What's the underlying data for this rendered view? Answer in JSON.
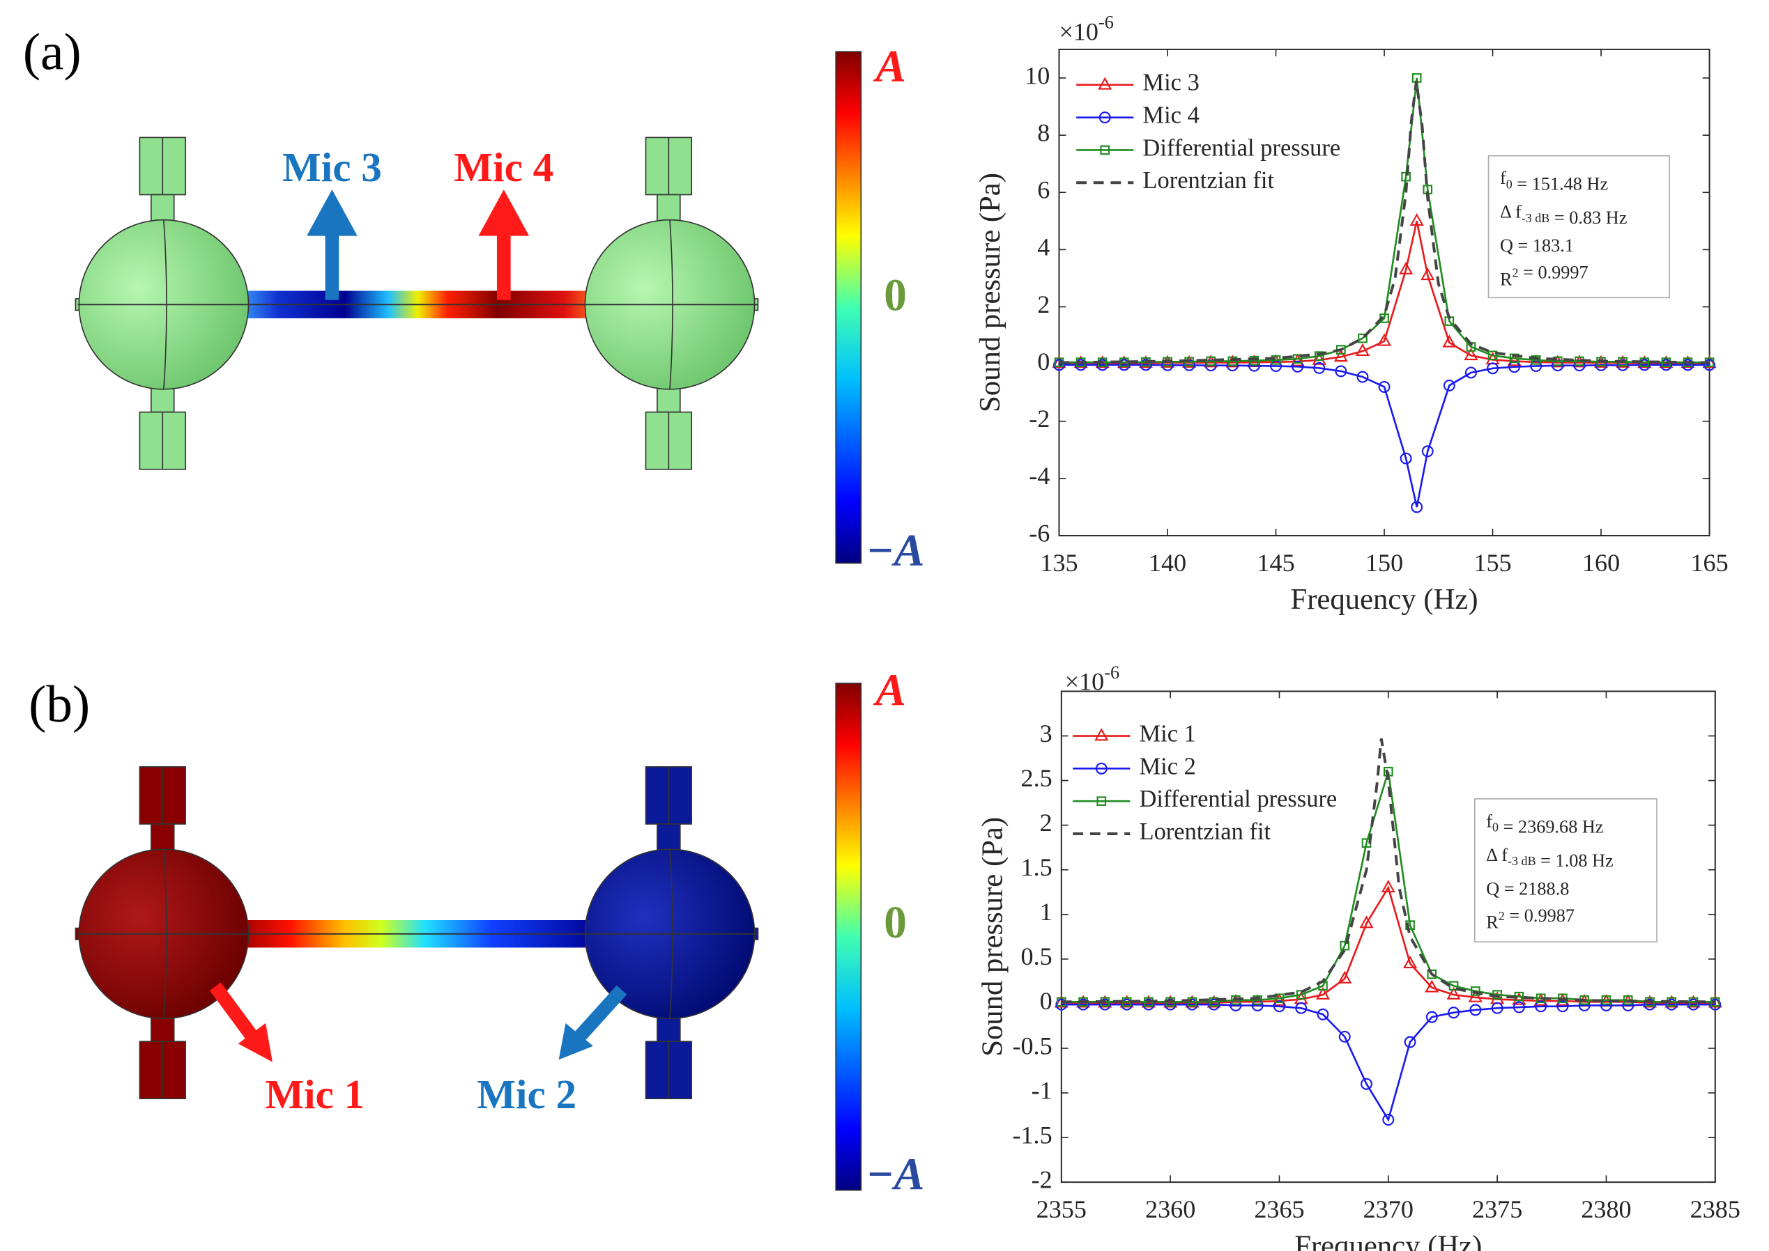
{
  "chart_data": [
    {
      "type": "line",
      "xlabel": "Frequency (Hz)",
      "ylabel": "Sound pressure (Pa)",
      "multiplier": "×10",
      "multiplier_exp": "-6",
      "x": [
        135,
        136,
        137,
        138,
        139,
        140,
        141,
        142,
        143,
        144,
        145,
        146,
        147,
        148,
        149,
        150,
        151,
        151.5,
        152,
        153,
        154,
        155,
        156,
        157,
        158,
        159,
        160,
        161,
        162,
        163,
        164,
        165
      ],
      "series": [
        {
          "name": "Mic 3",
          "color": "#e8191c",
          "marker": "triangle",
          "values": [
            0.03,
            0.03,
            0.03,
            0.03,
            0.03,
            0.04,
            0.04,
            0.05,
            0.05,
            0.06,
            0.07,
            0.09,
            0.14,
            0.25,
            0.45,
            0.8,
            3.3,
            5.0,
            3.1,
            0.75,
            0.3,
            0.15,
            0.1,
            0.07,
            0.05,
            0.05,
            0.04,
            0.04,
            0.03,
            0.03,
            0.03,
            0.03
          ]
        },
        {
          "name": "Mic 4",
          "color": "#1a1af0",
          "marker": "circle",
          "values": [
            -0.03,
            -0.03,
            -0.03,
            -0.03,
            -0.03,
            -0.04,
            -0.04,
            -0.05,
            -0.05,
            -0.06,
            -0.07,
            -0.09,
            -0.14,
            -0.25,
            -0.45,
            -0.8,
            -3.3,
            -5.0,
            -3.05,
            -0.75,
            -0.3,
            -0.15,
            -0.1,
            -0.07,
            -0.05,
            -0.05,
            -0.04,
            -0.04,
            -0.03,
            -0.03,
            -0.03,
            -0.03
          ]
        },
        {
          "name": "Differential pressure",
          "color": "#1e8c1e",
          "marker": "square",
          "values": [
            0.06,
            0.06,
            0.06,
            0.06,
            0.07,
            0.08,
            0.08,
            0.1,
            0.1,
            0.12,
            0.14,
            0.18,
            0.28,
            0.5,
            0.9,
            1.6,
            6.55,
            10.0,
            6.1,
            1.5,
            0.6,
            0.3,
            0.2,
            0.14,
            0.1,
            0.1,
            0.08,
            0.08,
            0.06,
            0.06,
            0.06,
            0.06
          ]
        },
        {
          "name": "Lorentzian fit",
          "color": "#444444",
          "dash": true,
          "x": [
            135,
            140,
            145,
            147,
            148,
            149,
            150,
            150.5,
            151,
            151.25,
            151.48,
            151.75,
            152,
            152.5,
            153,
            154,
            155,
            157,
            160,
            165
          ],
          "values": [
            0.05,
            0.1,
            0.2,
            0.35,
            0.5,
            0.9,
            1.7,
            3.0,
            6.0,
            8.5,
            9.9,
            8.3,
            5.8,
            2.8,
            1.6,
            0.7,
            0.4,
            0.2,
            0.1,
            0.05
          ]
        }
      ],
      "xlim": [
        135,
        165
      ],
      "xticks": [
        135,
        140,
        145,
        150,
        155,
        160,
        165
      ],
      "ylim": [
        -6,
        11
      ],
      "yticks": [
        -6,
        -4,
        -2,
        0,
        2,
        4,
        6,
        8,
        10
      ],
      "legend": "upper left",
      "annotation": [
        [
          "f",
          {
            "sub": "0"
          },
          " = 151.48 Hz"
        ],
        [
          "Δ f",
          {
            "sub": "-3 dB"
          },
          " = 0.83 Hz"
        ],
        [
          "Q = 183.1"
        ],
        [
          "R",
          {
            "sup": "2"
          },
          " = 0.9997"
        ]
      ]
    },
    {
      "type": "line",
      "xlabel": "Frequency (Hz)",
      "ylabel": "Sound pressure (Pa)",
      "multiplier": "×10",
      "multiplier_exp": "-6",
      "x": [
        2355,
        2356,
        2357,
        2358,
        2359,
        2360,
        2361,
        2362,
        2363,
        2364,
        2365,
        2366,
        2367,
        2368,
        2369,
        2370,
        2371,
        2372,
        2373,
        2374,
        2375,
        2376,
        2377,
        2378,
        2379,
        2380,
        2381,
        2382,
        2383,
        2384,
        2385
      ],
      "series": [
        {
          "name": "Mic 1",
          "color": "#e8191c",
          "marker": "triangle",
          "values": [
            0.01,
            0.01,
            0.01,
            0.01,
            0.01,
            0.01,
            0.01,
            0.01,
            0.02,
            0.02,
            0.03,
            0.05,
            0.1,
            0.28,
            0.9,
            1.3,
            0.45,
            0.18,
            0.1,
            0.07,
            0.05,
            0.04,
            0.03,
            0.03,
            0.02,
            0.02,
            0.02,
            0.01,
            0.01,
            0.01,
            0.01
          ]
        },
        {
          "name": "Mic 2",
          "color": "#1a1af0",
          "marker": "circle",
          "values": [
            -0.01,
            -0.01,
            -0.01,
            -0.01,
            -0.01,
            -0.01,
            -0.01,
            -0.01,
            -0.02,
            -0.02,
            -0.03,
            -0.05,
            -0.12,
            -0.37,
            -0.9,
            -1.3,
            -0.43,
            -0.15,
            -0.1,
            -0.07,
            -0.05,
            -0.04,
            -0.03,
            -0.03,
            -0.02,
            -0.02,
            -0.02,
            -0.01,
            -0.01,
            -0.01,
            -0.01
          ]
        },
        {
          "name": "Differential pressure",
          "color": "#1e8c1e",
          "marker": "square",
          "values": [
            0.02,
            0.02,
            0.02,
            0.02,
            0.02,
            0.02,
            0.02,
            0.02,
            0.04,
            0.04,
            0.06,
            0.1,
            0.2,
            0.65,
            1.8,
            2.6,
            0.88,
            0.33,
            0.2,
            0.14,
            0.1,
            0.08,
            0.06,
            0.06,
            0.04,
            0.04,
            0.04,
            0.02,
            0.02,
            0.02,
            0.02
          ]
        },
        {
          "name": "Lorentzian fit",
          "color": "#444444",
          "dash": true,
          "x": [
            2355,
            2360,
            2364,
            2366,
            2367,
            2368,
            2369,
            2369.5,
            2369.68,
            2370,
            2370.5,
            2371,
            2372,
            2373,
            2375,
            2380,
            2385
          ],
          "values": [
            0.02,
            0.03,
            0.06,
            0.13,
            0.25,
            0.6,
            1.5,
            2.5,
            2.97,
            2.5,
            1.3,
            0.75,
            0.33,
            0.17,
            0.08,
            0.03,
            0.02
          ]
        }
      ],
      "xlim": [
        2355,
        2385
      ],
      "xticks": [
        2355,
        2360,
        2365,
        2370,
        2375,
        2380,
        2385
      ],
      "ylim": [
        -2,
        3.5
      ],
      "yticks": [
        -2,
        -1.5,
        -1,
        -0.5,
        0,
        0.5,
        1,
        1.5,
        2,
        2.5,
        3
      ],
      "legend": "upper left",
      "annotation": [
        [
          "f",
          {
            "sub": "0"
          },
          " = 2369.68 Hz"
        ],
        [
          "Δ f",
          {
            "sub": "-3 dB"
          },
          " = 1.08 Hz"
        ],
        [
          "Q = 2188.8"
        ],
        [
          "R",
          {
            "sup": "2"
          },
          " = 0.9987"
        ]
      ]
    }
  ],
  "illustrations": [
    {
      "panel_label": "(a)",
      "mics": [
        "Mic 3",
        "Mic 4"
      ],
      "colorbar": {
        "max": "A",
        "zero": "0",
        "min": "−A"
      }
    },
    {
      "panel_label": "(b)",
      "mics": [
        "Mic 1",
        "Mic 2"
      ],
      "colorbar": {
        "max": "A",
        "zero": "0",
        "min": "−A"
      }
    }
  ]
}
